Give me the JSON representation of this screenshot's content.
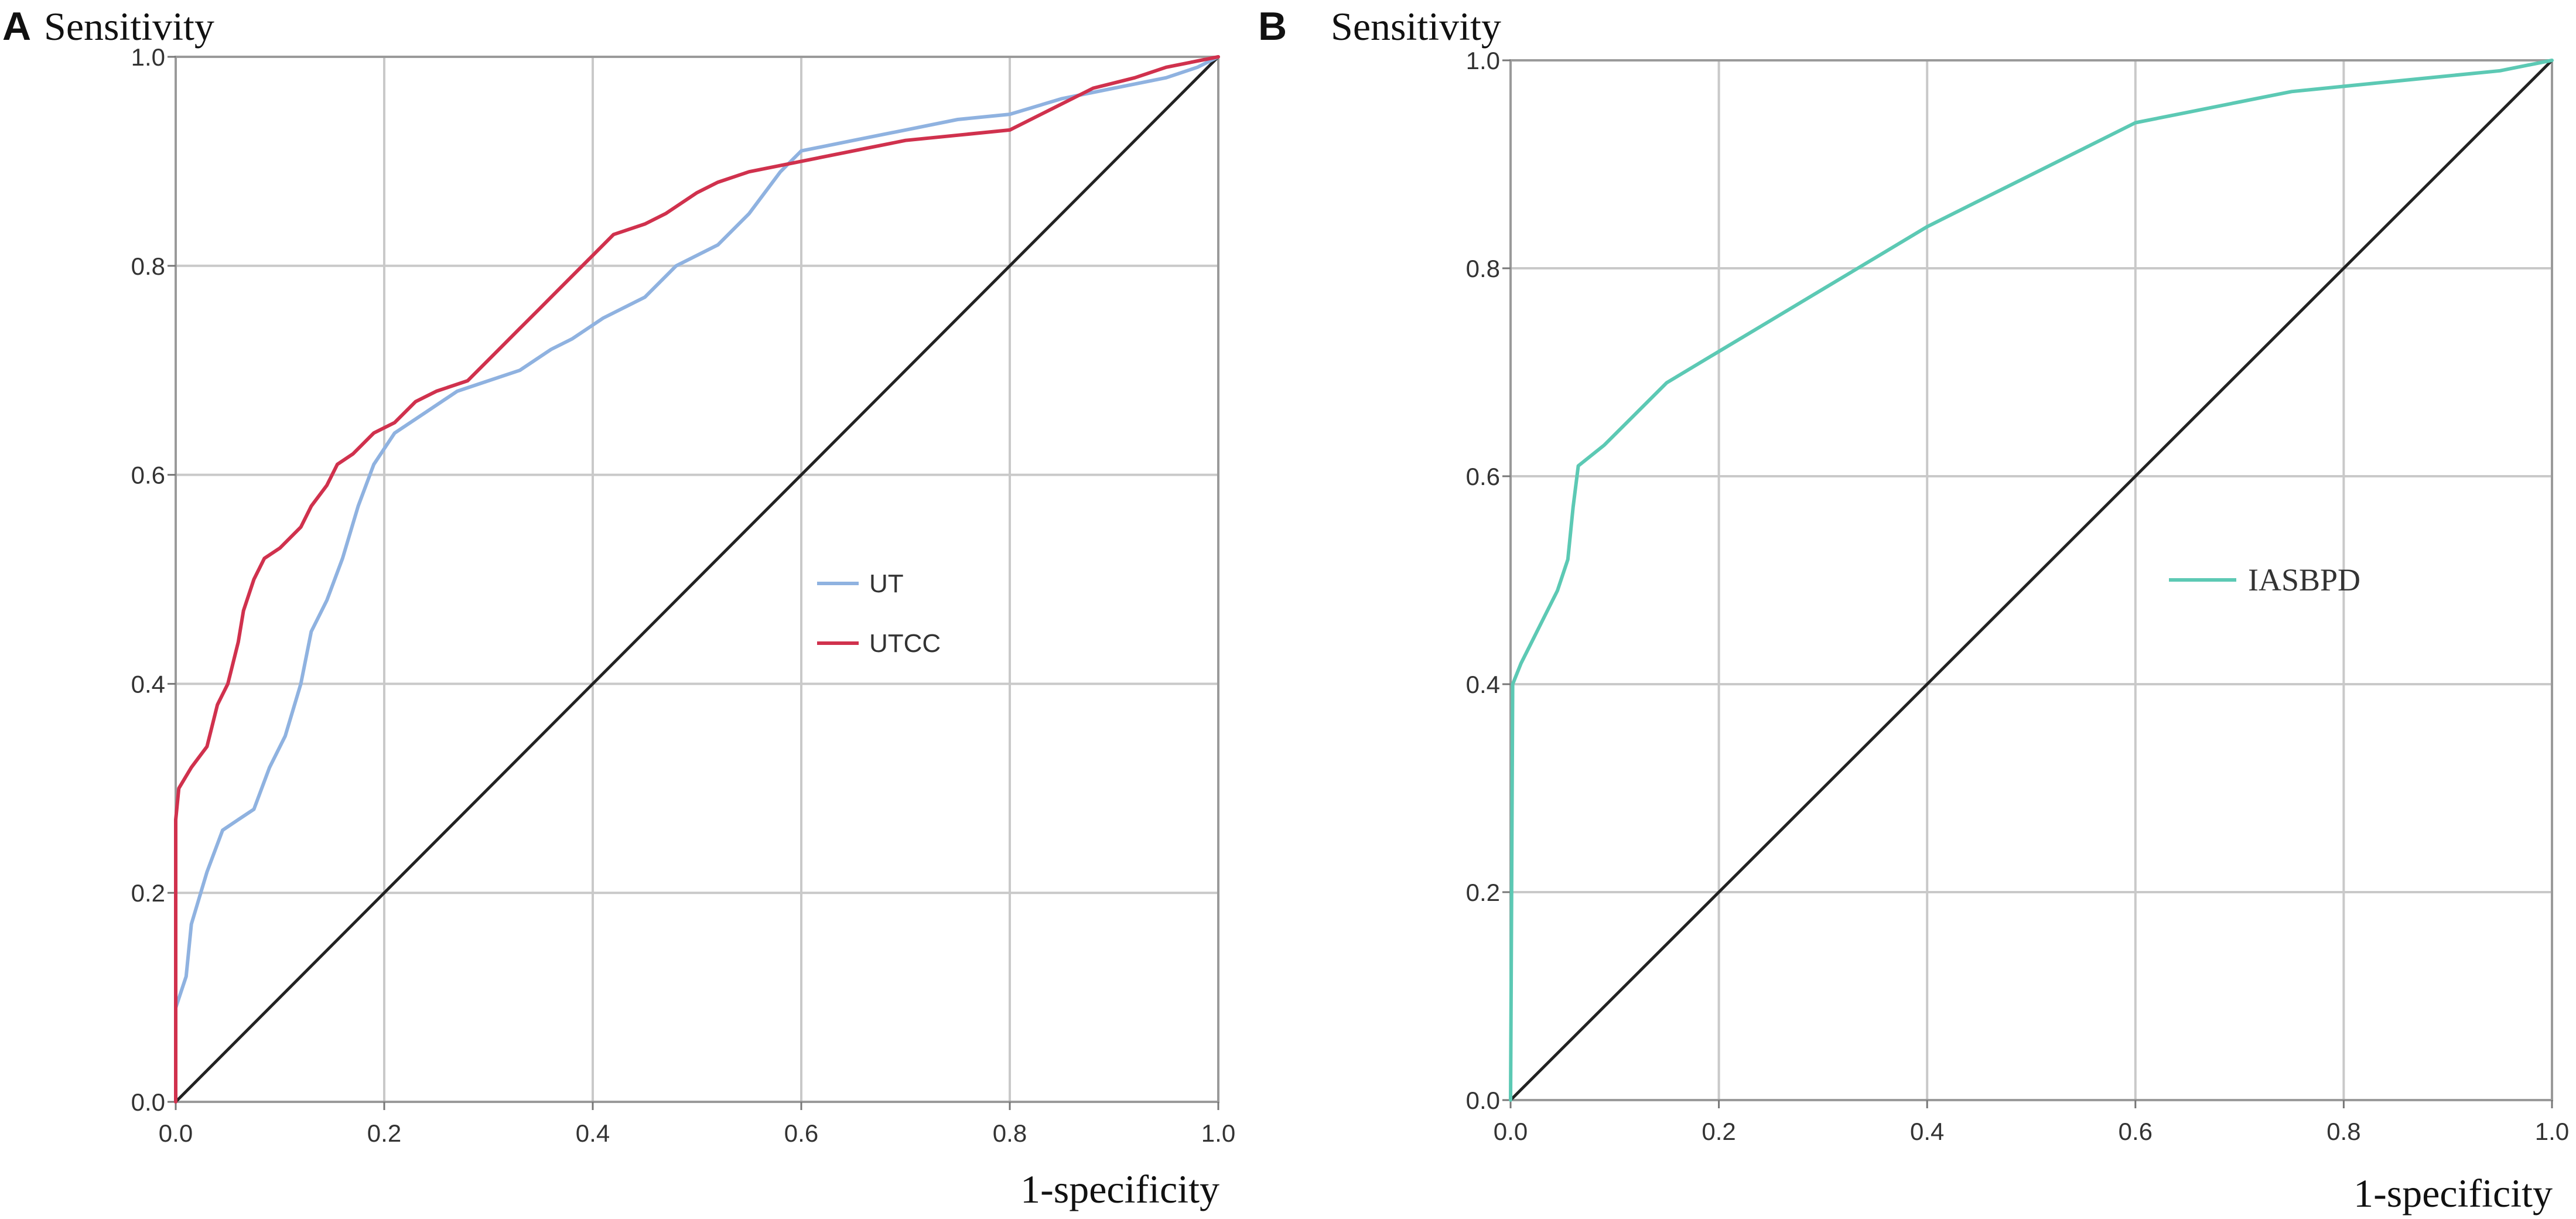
{
  "chart_data": [
    {
      "type": "line",
      "panel_label": "A",
      "ylabel": "Sensitivity",
      "xlabel": "1-specificity",
      "xlim": [
        0,
        1
      ],
      "ylim": [
        0,
        1
      ],
      "grid": true,
      "xticks": [
        "0.0",
        "0.2",
        "0.4",
        "0.6",
        "0.8",
        "1.0"
      ],
      "yticks": [
        "0.0",
        "0.2",
        "0.4",
        "0.6",
        "0.8",
        "1.0"
      ],
      "legend_position": "middle-right",
      "reference_line": {
        "name": "reference-diagonal",
        "color": "#222222",
        "points": [
          [
            0,
            0
          ],
          [
            1,
            1
          ]
        ]
      },
      "series": [
        {
          "name": "UT",
          "color": "#8fb2e0",
          "points": [
            [
              0,
              0
            ],
            [
              0,
              0.09
            ],
            [
              0.01,
              0.12
            ],
            [
              0.015,
              0.17
            ],
            [
              0.03,
              0.22
            ],
            [
              0.045,
              0.26
            ],
            [
              0.06,
              0.27
            ],
            [
              0.075,
              0.28
            ],
            [
              0.09,
              0.32
            ],
            [
              0.105,
              0.35
            ],
            [
              0.12,
              0.4
            ],
            [
              0.13,
              0.45
            ],
            [
              0.145,
              0.48
            ],
            [
              0.16,
              0.52
            ],
            [
              0.175,
              0.57
            ],
            [
              0.19,
              0.61
            ],
            [
              0.21,
              0.64
            ],
            [
              0.24,
              0.66
            ],
            [
              0.27,
              0.68
            ],
            [
              0.3,
              0.69
            ],
            [
              0.33,
              0.7
            ],
            [
              0.36,
              0.72
            ],
            [
              0.38,
              0.73
            ],
            [
              0.41,
              0.75
            ],
            [
              0.45,
              0.77
            ],
            [
              0.48,
              0.8
            ],
            [
              0.52,
              0.82
            ],
            [
              0.55,
              0.85
            ],
            [
              0.58,
              0.89
            ],
            [
              0.6,
              0.91
            ],
            [
              0.65,
              0.92
            ],
            [
              0.7,
              0.93
            ],
            [
              0.75,
              0.94
            ],
            [
              0.8,
              0.945
            ],
            [
              0.85,
              0.96
            ],
            [
              0.9,
              0.97
            ],
            [
              0.95,
              0.98
            ],
            [
              0.98,
              0.99
            ],
            [
              1,
              1
            ]
          ]
        },
        {
          "name": "UTCC",
          "color": "#d0314d",
          "points": [
            [
              0,
              0
            ],
            [
              0,
              0.27
            ],
            [
              0.003,
              0.3
            ],
            [
              0.015,
              0.32
            ],
            [
              0.03,
              0.34
            ],
            [
              0.04,
              0.38
            ],
            [
              0.05,
              0.4
            ],
            [
              0.06,
              0.44
            ],
            [
              0.065,
              0.47
            ],
            [
              0.075,
              0.5
            ],
            [
              0.085,
              0.52
            ],
            [
              0.1,
              0.53
            ],
            [
              0.12,
              0.55
            ],
            [
              0.13,
              0.57
            ],
            [
              0.145,
              0.59
            ],
            [
              0.155,
              0.61
            ],
            [
              0.17,
              0.62
            ],
            [
              0.19,
              0.64
            ],
            [
              0.21,
              0.65
            ],
            [
              0.23,
              0.67
            ],
            [
              0.25,
              0.68
            ],
            [
              0.28,
              0.69
            ],
            [
              0.31,
              0.72
            ],
            [
              0.33,
              0.74
            ],
            [
              0.35,
              0.76
            ],
            [
              0.38,
              0.79
            ],
            [
              0.4,
              0.81
            ],
            [
              0.42,
              0.83
            ],
            [
              0.45,
              0.84
            ],
            [
              0.47,
              0.85
            ],
            [
              0.5,
              0.87
            ],
            [
              0.52,
              0.88
            ],
            [
              0.55,
              0.89
            ],
            [
              0.6,
              0.9
            ],
            [
              0.65,
              0.91
            ],
            [
              0.7,
              0.92
            ],
            [
              0.75,
              0.925
            ],
            [
              0.8,
              0.93
            ],
            [
              0.84,
              0.95
            ],
            [
              0.88,
              0.97
            ],
            [
              0.92,
              0.98
            ],
            [
              0.95,
              0.99
            ],
            [
              1,
              1
            ]
          ]
        }
      ]
    },
    {
      "type": "line",
      "panel_label": "B",
      "ylabel": "Sensitivity",
      "xlabel": "1-specificity",
      "xlim": [
        0,
        1
      ],
      "ylim": [
        0,
        1
      ],
      "grid": true,
      "xticks": [
        "0.0",
        "0.2",
        "0.4",
        "0.6",
        "0.8",
        "1.0"
      ],
      "yticks": [
        "0.0",
        "0.2",
        "0.4",
        "0.6",
        "0.8",
        "1.0"
      ],
      "legend_position": "middle-right",
      "reference_line": {
        "name": "reference-diagonal",
        "color": "#222222",
        "points": [
          [
            0,
            0
          ],
          [
            1,
            1
          ]
        ]
      },
      "series": [
        {
          "name": "IASBPD",
          "color": "#5cc9b4",
          "points": [
            [
              0,
              0
            ],
            [
              0.002,
              0.4
            ],
            [
              0.01,
              0.42
            ],
            [
              0.02,
              0.44
            ],
            [
              0.035,
              0.47
            ],
            [
              0.045,
              0.49
            ],
            [
              0.055,
              0.52
            ],
            [
              0.06,
              0.57
            ],
            [
              0.065,
              0.61
            ],
            [
              0.09,
              0.63
            ],
            [
              0.12,
              0.66
            ],
            [
              0.15,
              0.69
            ],
            [
              0.2,
              0.72
            ],
            [
              0.25,
              0.75
            ],
            [
              0.3,
              0.78
            ],
            [
              0.35,
              0.81
            ],
            [
              0.4,
              0.84
            ],
            [
              0.45,
              0.865
            ],
            [
              0.5,
              0.89
            ],
            [
              0.55,
              0.915
            ],
            [
              0.6,
              0.94
            ],
            [
              0.65,
              0.95
            ],
            [
              0.7,
              0.96
            ],
            [
              0.75,
              0.97
            ],
            [
              0.8,
              0.975
            ],
            [
              0.85,
              0.98
            ],
            [
              0.9,
              0.985
            ],
            [
              0.95,
              0.99
            ],
            [
              1,
              1
            ]
          ]
        }
      ]
    }
  ]
}
